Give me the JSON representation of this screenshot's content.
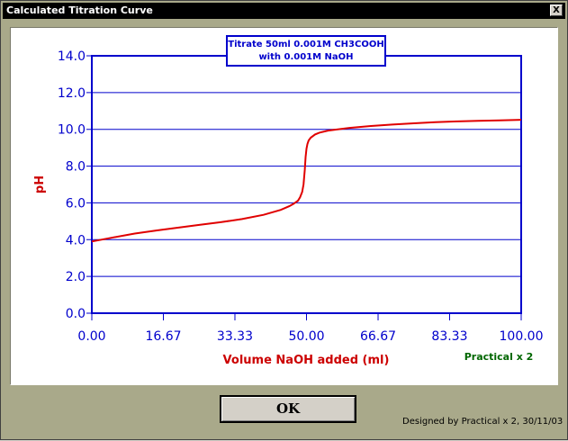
{
  "window": {
    "title": "Calculated Titration Curve",
    "close_label": "X"
  },
  "chart_data": {
    "type": "line",
    "title": "Titrate 50ml 0.001M CH3COOH with 0.001M NaOH",
    "title_lines": [
      "Titrate 50ml 0.001M CH3COOH",
      "with 0.001M NaOH"
    ],
    "xlabel": "Volume NaOH added (ml)",
    "ylabel": "pH",
    "xlim": [
      0,
      100
    ],
    "ylim": [
      0,
      14
    ],
    "x_ticks": [
      "0.00",
      "16.67",
      "33.33",
      "50.00",
      "66.67",
      "83.33",
      "100.00"
    ],
    "y_ticks": [
      "0.0",
      "2.0",
      "4.0",
      "6.0",
      "8.0",
      "10.0",
      "12.0",
      "14.0"
    ],
    "grid": "horizontal",
    "annotation": "Practical x 2",
    "series": [
      {
        "x": [
          0,
          5,
          10,
          15,
          20,
          25,
          30,
          35,
          40,
          44,
          46,
          47,
          48,
          48.5,
          49,
          49.3,
          49.6,
          49.8,
          50,
          50.2,
          50.5,
          51,
          52,
          53,
          55,
          60,
          65,
          70,
          75,
          80,
          85,
          90,
          95,
          100
        ],
        "y": [
          3.9,
          4.12,
          4.33,
          4.5,
          4.65,
          4.8,
          4.95,
          5.12,
          5.35,
          5.62,
          5.82,
          5.95,
          6.12,
          6.3,
          6.6,
          7.0,
          7.8,
          8.5,
          8.95,
          9.2,
          9.4,
          9.55,
          9.72,
          9.82,
          9.93,
          10.08,
          10.18,
          10.26,
          10.33,
          10.39,
          10.43,
          10.46,
          10.49,
          10.52
        ],
        "color": "#ff0000"
      }
    ],
    "colors": {
      "axis": "#0000cc",
      "tick_text": "#0000cc",
      "axis_label": "#cc0000",
      "annotation": "#006600",
      "title_text": "#0000cc"
    }
  },
  "buttons": {
    "ok_label": "OK"
  },
  "footer": {
    "credit": "Designed by Practical x 2, 30/11/03"
  }
}
